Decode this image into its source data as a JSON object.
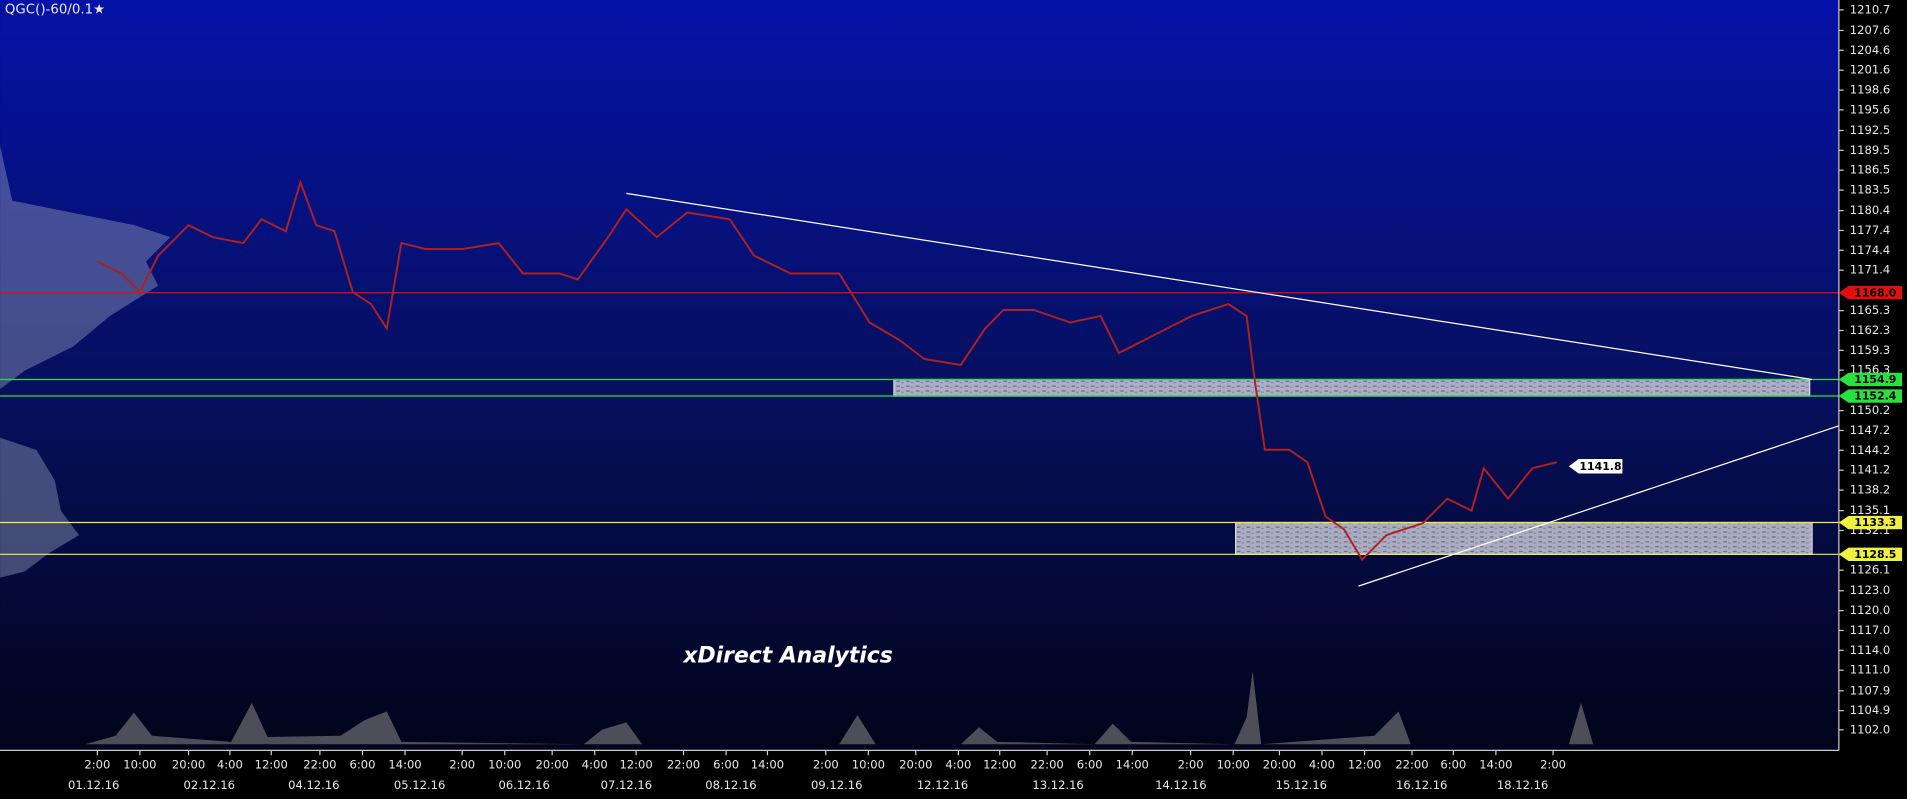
{
  "chart_data": {
    "type": "line",
    "title": "QGC()-60/0.1★",
    "watermark": "xDirect Analytics",
    "color": "#b02020",
    "xlim": [
      -20,
      358
    ],
    "ylim": [
      1098.9,
      1212.2
    ],
    "x": [
      0,
      5,
      8.75,
      12.5,
      18.75,
      23.75,
      30,
      33.75,
      38.75,
      41.75,
      45,
      48.75,
      52.5,
      56.25,
      59.5,
      62.5,
      67.5,
      75,
      82.5,
      87.5,
      95,
      98.75,
      105,
      108.75,
      115,
      121.25,
      130,
      135,
      142.5,
      152.5,
      158.75,
      165,
      170,
      177.5,
      182.5,
      186.25,
      192.5,
      200,
      206.25,
      210,
      217.5,
      225,
      232.5,
      236.25,
      238,
      240,
      245,
      248.75,
      252.5,
      256.25,
      260,
      265,
      272.5,
      277.5,
      282.5,
      285,
      290,
      295,
      300
    ],
    "values": [
      1172.7,
      1170.9,
      1168.1,
      1173.6,
      1178.2,
      1176.4,
      1175.5,
      1179.1,
      1177.3,
      1184.7,
      1178.2,
      1177.3,
      1168.1,
      1166.3,
      1162.6,
      1175.5,
      1174.6,
      1174.6,
      1175.5,
      1170.9,
      1170.9,
      1170.0,
      1176.4,
      1180.6,
      1176.4,
      1180.1,
      1179.1,
      1173.6,
      1170.9,
      1170.9,
      1163.5,
      1160.8,
      1158.0,
      1157.1,
      1162.6,
      1165.4,
      1165.4,
      1163.5,
      1164.5,
      1158.9,
      1161.7,
      1164.5,
      1166.3,
      1164.5,
      1154.4,
      1144.3,
      1144.3,
      1142.4,
      1134.2,
      1132.3,
      1127.7,
      1131.4,
      1133.2,
      1136.9,
      1135.1,
      1141.5,
      1136.9,
      1141.5,
      1142.4
    ],
    "xticks": [
      {
        "value": 0,
        "label": "2:00"
      },
      {
        "value": 8.75,
        "label": "10:00"
      },
      {
        "value": 18.75,
        "label": "20:00"
      },
      {
        "value": 27.25,
        "label": "4:00"
      },
      {
        "value": 35.75,
        "label": "12:00"
      },
      {
        "value": 45.75,
        "label": "22:00"
      },
      {
        "value": 54.5,
        "label": "6:00"
      },
      {
        "value": 63.25,
        "label": "14:00"
      },
      {
        "value": 75,
        "label": "2:00"
      },
      {
        "value": 83.75,
        "label": "10:00"
      },
      {
        "value": 93.5,
        "label": "20:00"
      },
      {
        "value": 102.25,
        "label": "4:00"
      },
      {
        "value": 110.75,
        "label": "12:00"
      },
      {
        "value": 120.5,
        "label": "22:00"
      },
      {
        "value": 129.25,
        "label": "6:00"
      },
      {
        "value": 137.75,
        "label": "14:00"
      },
      {
        "value": 149.75,
        "label": "2:00"
      },
      {
        "value": 158.5,
        "label": "10:00"
      },
      {
        "value": 168.25,
        "label": "20:00"
      },
      {
        "value": 177,
        "label": "4:00"
      },
      {
        "value": 185.5,
        "label": "12:00"
      },
      {
        "value": 195.25,
        "label": "22:00"
      },
      {
        "value": 204,
        "label": "6:00"
      },
      {
        "value": 212.75,
        "label": "14:00"
      },
      {
        "value": 224.75,
        "label": "2:00"
      },
      {
        "value": 233.5,
        "label": "10:00"
      },
      {
        "value": 243,
        "label": "20:00"
      },
      {
        "value": 251.75,
        "label": "4:00"
      },
      {
        "value": 260.5,
        "label": "12:00"
      },
      {
        "value": 270.25,
        "label": "22:00"
      },
      {
        "value": 278.75,
        "label": "6:00"
      },
      {
        "value": 287.5,
        "label": "14:00"
      },
      {
        "value": 299.25,
        "label": "2:00"
      }
    ],
    "date_labels": [
      {
        "value": -0.75,
        "label": "01.12.16"
      },
      {
        "value": 23,
        "label": "02.12.16"
      },
      {
        "value": 44.5,
        "label": "04.12.16"
      },
      {
        "value": 66.25,
        "label": "05.12.16"
      },
      {
        "value": 87.75,
        "label": "06.12.16"
      },
      {
        "value": 108.75,
        "label": "07.12.16"
      },
      {
        "value": 130.25,
        "label": "08.12.16"
      },
      {
        "value": 152,
        "label": "09.12.16"
      },
      {
        "value": 173.75,
        "label": "12.12.16"
      },
      {
        "value": 197.5,
        "label": "13.12.16"
      },
      {
        "value": 222.75,
        "label": "14.12.16"
      },
      {
        "value": 247.5,
        "label": "15.12.16"
      },
      {
        "value": 272.25,
        "label": "16.12.16"
      },
      {
        "value": 293,
        "label": "18.12.16"
      }
    ],
    "yticks": [
      1210.7,
      1207.6,
      1204.6,
      1201.6,
      1198.6,
      1195.6,
      1192.5,
      1189.5,
      1186.5,
      1183.5,
      1180.4,
      1177.4,
      1174.4,
      1171.4,
      1165.3,
      1162.3,
      1159.3,
      1156.3,
      1150.2,
      1147.2,
      1144.2,
      1141.2,
      1138.2,
      1135.1,
      1132.1,
      1126.1,
      {
        "value": 1123,
        "label": "1123.0"
      },
      {
        "value": 1120,
        "label": "1120.0"
      },
      {
        "value": 1117,
        "label": "1117.0"
      },
      {
        "value": 1114,
        "label": "1114.0"
      },
      {
        "value": 1111,
        "label": "1111.0"
      },
      1107.9,
      1104.9,
      {
        "value": 1102,
        "label": "1102.0"
      }
    ],
    "levels": [
      {
        "value": 1168,
        "label": "1168.0",
        "color": "#e01010"
      },
      {
        "value": 1154.9,
        "label": "1154.9",
        "color": "#28e040"
      },
      {
        "value": 1152.4,
        "label": "1152.4",
        "color": "#28e040"
      },
      {
        "value": 1133.3,
        "label": "1133.3",
        "color": "#f0f040"
      },
      {
        "value": 1128.5,
        "label": "1128.5",
        "color": "#f0f040"
      }
    ],
    "zones": [
      {
        "x": [
          163.75,
          352
        ],
        "y": [
          1152.4,
          1154.9
        ]
      },
      {
        "x": [
          234,
          352.5
        ],
        "y": [
          1128.5,
          1133.3
        ]
      }
    ],
    "trendlines": [
      {
        "x": [
          108.75,
          352.5
        ],
        "y": [
          1183.0,
          1154.9
        ]
      },
      {
        "x": [
          259.25,
          358
        ],
        "y": [
          1123.7,
          1147.9
        ]
      }
    ],
    "last_price": {
      "x": 302.5,
      "value": 1141.8
    }
  }
}
